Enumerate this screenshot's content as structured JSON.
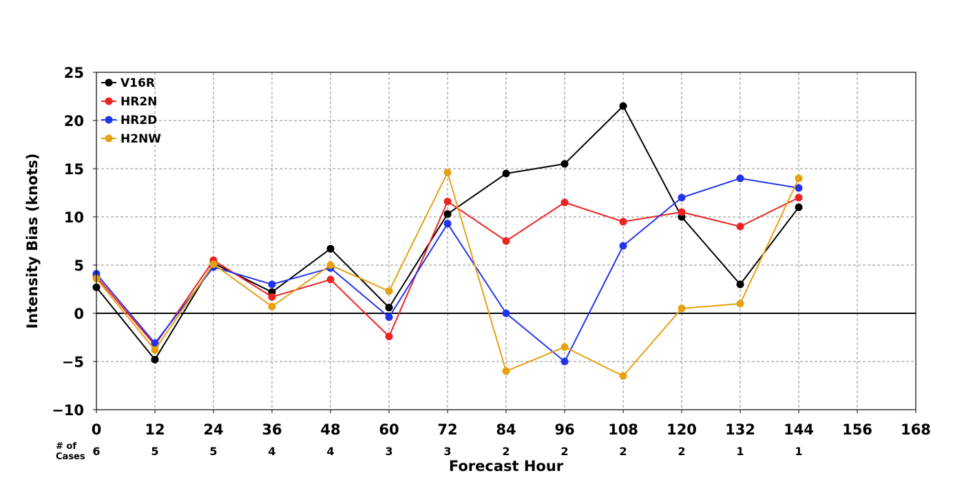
{
  "chart_data": {
    "type": "line",
    "title": "",
    "xlabel": "Forecast Hour",
    "ylabel": "Intensity Bias (knots)",
    "xlim": [
      0,
      168
    ],
    "ylim": [
      -10,
      25
    ],
    "x_ticks": [
      0,
      12,
      24,
      36,
      48,
      60,
      72,
      84,
      96,
      108,
      120,
      132,
      144,
      156,
      168
    ],
    "y_ticks": [
      -10,
      -5,
      0,
      5,
      10,
      15,
      20,
      25
    ],
    "y_tick_labels": [
      "−10",
      "−5",
      "0",
      "5",
      "10",
      "15",
      "20",
      "25"
    ],
    "grid": true,
    "legend_position": "top-left",
    "cases_label": "# of\nCases",
    "cases": [
      6,
      5,
      5,
      4,
      4,
      3,
      3,
      2,
      2,
      2,
      2,
      1,
      1
    ],
    "x": [
      0,
      12,
      24,
      36,
      48,
      60,
      72,
      84,
      96,
      108,
      120,
      132,
      144
    ],
    "series": [
      {
        "name": "V16R",
        "color": "#000000",
        "values": [
          2.7,
          -4.8,
          5.2,
          2.2,
          6.7,
          0.6,
          10.3,
          14.5,
          15.5,
          21.5,
          10.0,
          3.0,
          11.0
        ]
      },
      {
        "name": "HR2N",
        "color": "#ee2222",
        "values": [
          3.8,
          -3.3,
          5.5,
          1.7,
          3.5,
          -2.4,
          11.6,
          7.5,
          11.5,
          9.5,
          10.5,
          9.0,
          12.0
        ]
      },
      {
        "name": "HR2D",
        "color": "#2233ee",
        "values": [
          4.1,
          -3.1,
          4.8,
          3.0,
          4.7,
          -0.4,
          9.3,
          0.0,
          -5.0,
          7.0,
          12.0,
          14.0,
          13.0
        ]
      },
      {
        "name": "H2NW",
        "color": "#e6a010",
        "values": [
          3.6,
          -3.8,
          5.1,
          0.7,
          5.0,
          2.3,
          14.6,
          -6.0,
          -3.5,
          -6.5,
          0.5,
          1.0,
          14.0
        ]
      }
    ]
  }
}
